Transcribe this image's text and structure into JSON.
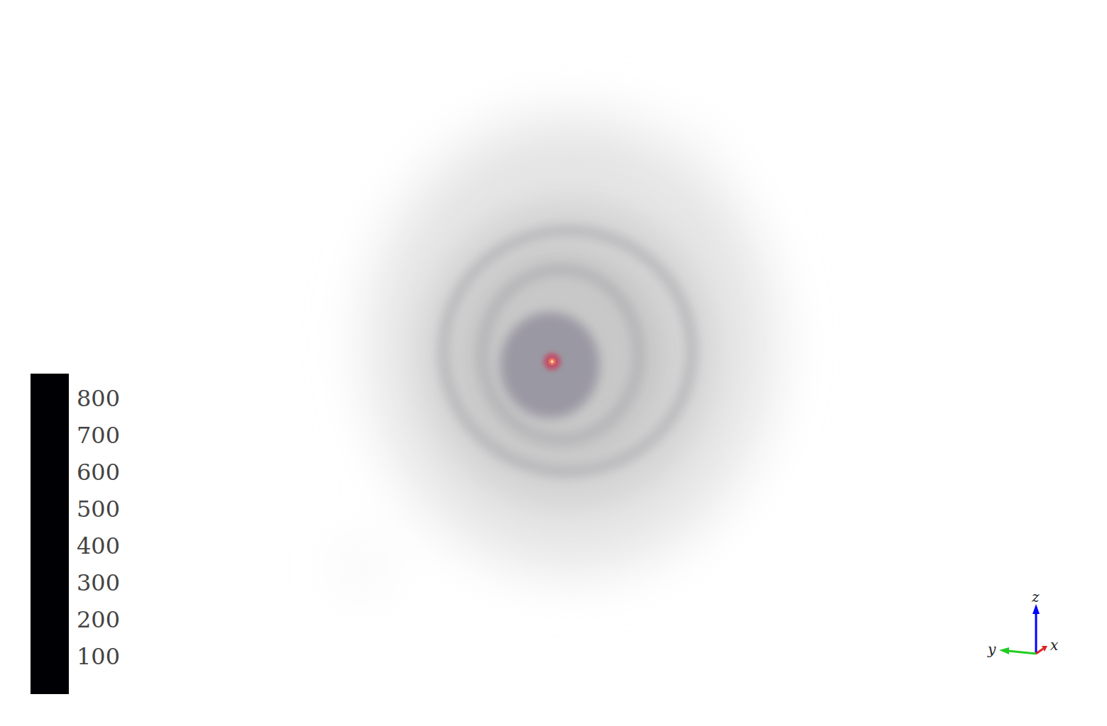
{
  "chart_data": {
    "type": "volume_rendering",
    "colorbar": {
      "range": [
        0,
        865
      ],
      "ticks": [
        100,
        200,
        300,
        400,
        500,
        600,
        700,
        800
      ]
    },
    "annotations": [
      "x",
      "y",
      "z"
    ]
  }
}
